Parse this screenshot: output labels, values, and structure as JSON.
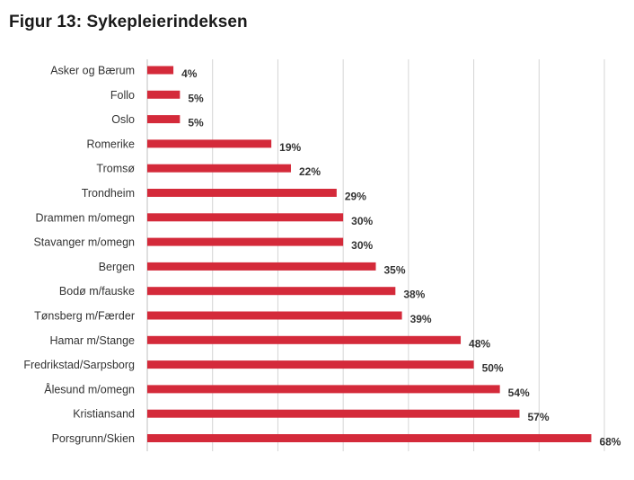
{
  "chart_data": {
    "type": "bar",
    "orientation": "horizontal",
    "title": "Figur 13: Sykepleierindeksen",
    "categories": [
      "Asker og Bærum",
      "Follo",
      "Oslo",
      "Romerike",
      "Tromsø",
      "Trondheim",
      "Drammen m/omegn",
      "Stavanger m/omegn",
      "Bergen",
      "Bodø m/fauske",
      "Tønsberg m/Færder",
      "Hamar m/Stange",
      "Fredrikstad/Sarpsborg",
      "Ålesund m/omegn",
      "Kristiansand",
      "Porsgrunn/Skien"
    ],
    "values": [
      4,
      5,
      5,
      19,
      22,
      29,
      30,
      30,
      35,
      38,
      39,
      48,
      50,
      54,
      57,
      68
    ],
    "value_labels": [
      "4%",
      "5%",
      "5%",
      "19%",
      "22%",
      "29%",
      "30%",
      "30%",
      "35%",
      "38%",
      "39%",
      "48%",
      "50%",
      "54%",
      "57%",
      "68%"
    ],
    "xlim": [
      0,
      70
    ],
    "grid": true,
    "legend": "none",
    "bar_color": "#d42a3a"
  }
}
